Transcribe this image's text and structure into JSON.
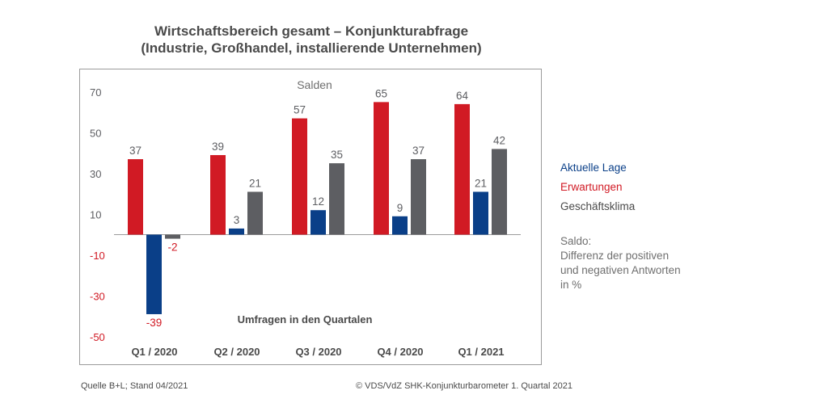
{
  "title_line1": "Wirtschaftsbereich gesamt – Konjunkturabfrage",
  "title_line2": "(Industrie, Großhandel, installierende Unternehmen)",
  "legend": [
    {
      "label": "Aktuelle Lage",
      "color": "#0a3f88"
    },
    {
      "label": "Erwartungen",
      "color": "#d11a24"
    },
    {
      "label": "Geschäftsklima",
      "color": "#5d5e62"
    }
  ],
  "note": [
    "Saldo:",
    "Differenz der positiven",
    "und negativen Antworten",
    "in %"
  ],
  "footer": {
    "source": "Quelle B+L; Stand 04/2021",
    "copyright": "© VDS/VdZ SHK-Konjunkturbarometer 1. Quartal 2021"
  },
  "chart_data": {
    "type": "bar",
    "inner_title": "Salden",
    "xlabel": "Umfragen in den Quartalen",
    "categories": [
      "Q1 / 2020",
      "Q2 / 2020",
      "Q3 / 2020",
      "Q4 / 2020",
      "Q1 / 2021"
    ],
    "series": [
      {
        "name": "Erwartungen",
        "color": "#d11a24",
        "values": [
          37,
          39,
          57,
          65,
          64
        ]
      },
      {
        "name": "Aktuelle Lage",
        "color": "#0a3f88",
        "values": [
          -39,
          3,
          12,
          9,
          21
        ]
      },
      {
        "name": "Geschäftsklima",
        "color": "#5d5e62",
        "values": [
          -2,
          21,
          35,
          37,
          42
        ]
      }
    ],
    "yticks": [
      70,
      50,
      30,
      10,
      -10,
      -30,
      -50
    ],
    "ylim": [
      -50,
      70
    ],
    "negative_label_color": "#d11a24",
    "positive_label_color": "#5d5e62",
    "grid": false
  }
}
